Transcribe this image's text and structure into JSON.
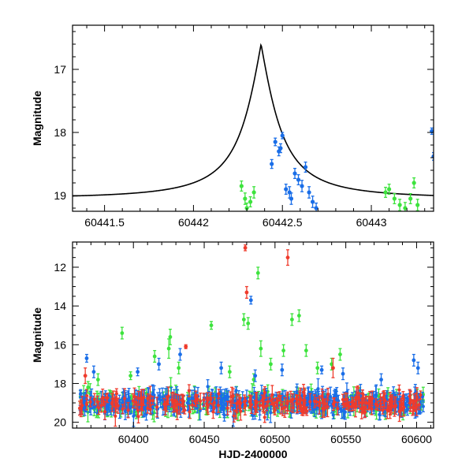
{
  "chart_data": [
    {
      "type": "line",
      "panel": "top",
      "xlabel": "",
      "ylabel": "Magnitude",
      "xlim": [
        60441.32,
        60443.35
      ],
      "ylim": [
        19.25,
        16.3
      ],
      "y_inverted": true,
      "xticks": [
        60441.5,
        60442,
        60442.5,
        60443
      ],
      "xtick_labels": [
        "60441.5",
        "60442",
        "60442.5",
        "60443"
      ],
      "yticks": [
        17,
        18,
        19
      ],
      "ytick_labels": [
        "17",
        "18",
        "19"
      ],
      "model_curve": {
        "peak_time": 60442.38,
        "peak_mag": 16.6,
        "baseline_mag": 19.05,
        "width_days": 0.27,
        "color": "#000000"
      },
      "series": [
        {
          "color": "#3de33d",
          "points": [
            {
              "x": 60442.27,
              "y": 18.85,
              "err": 0.08
            },
            {
              "x": 60442.29,
              "y": 19.05,
              "err": 0.09
            },
            {
              "x": 60442.3,
              "y": 19.2,
              "err": 0.08
            },
            {
              "x": 60442.32,
              "y": 19.1,
              "err": 0.08
            },
            {
              "x": 60442.34,
              "y": 18.95,
              "err": 0.09
            },
            {
              "x": 60443.08,
              "y": 18.95,
              "err": 0.08
            },
            {
              "x": 60443.1,
              "y": 18.9,
              "err": 0.08
            },
            {
              "x": 60443.13,
              "y": 19.05,
              "err": 0.08
            },
            {
              "x": 60443.16,
              "y": 19.15,
              "err": 0.09
            },
            {
              "x": 60443.19,
              "y": 19.2,
              "err": 0.09
            },
            {
              "x": 60443.22,
              "y": 19.05,
              "err": 0.08
            },
            {
              "x": 60443.24,
              "y": 18.8,
              "err": 0.08
            },
            {
              "x": 60443.26,
              "y": 19.15,
              "err": 0.09
            }
          ]
        },
        {
          "color": "#1a6ee8",
          "points": [
            {
              "x": 60442.44,
              "y": 18.5,
              "err": 0.07
            },
            {
              "x": 60442.46,
              "y": 18.15,
              "err": 0.06
            },
            {
              "x": 60442.48,
              "y": 18.3,
              "err": 0.07
            },
            {
              "x": 60442.49,
              "y": 18.25,
              "err": 0.07
            },
            {
              "x": 60442.5,
              "y": 18.05,
              "err": 0.05
            },
            {
              "x": 60442.52,
              "y": 18.9,
              "err": 0.08
            },
            {
              "x": 60442.54,
              "y": 18.95,
              "err": 0.09
            },
            {
              "x": 60442.55,
              "y": 19.05,
              "err": 0.09
            },
            {
              "x": 60442.57,
              "y": 18.65,
              "err": 0.08
            },
            {
              "x": 60442.59,
              "y": 18.75,
              "err": 0.08
            },
            {
              "x": 60442.61,
              "y": 18.85,
              "err": 0.09
            },
            {
              "x": 60442.63,
              "y": 18.55,
              "err": 0.08
            },
            {
              "x": 60442.65,
              "y": 18.95,
              "err": 0.09
            },
            {
              "x": 60442.67,
              "y": 19.1,
              "err": 0.09
            },
            {
              "x": 60442.69,
              "y": 19.2,
              "err": 0.08
            },
            {
              "x": 60443.34,
              "y": 17.98,
              "err": 0.05
            },
            {
              "x": 60443.35,
              "y": 18.38,
              "err": 0.06
            }
          ]
        }
      ]
    },
    {
      "type": "scatter",
      "panel": "bottom",
      "xlabel": "HJD-2400000",
      "ylabel": "Magnitude",
      "xlim": [
        60357,
        60612
      ],
      "ylim": [
        20.3,
        10.7
      ],
      "y_inverted": true,
      "xticks": [
        60400,
        60450,
        60500,
        60550,
        60600
      ],
      "xtick_labels": [
        "60400",
        "60450",
        "60500",
        "60550",
        "60600"
      ],
      "yticks": [
        12,
        14,
        16,
        18,
        20
      ],
      "ytick_labels": [
        "12",
        "14",
        "16",
        "18",
        "20"
      ],
      "baseline_mag": 19.0,
      "baseline_range": [
        60362,
        60605
      ],
      "series": [
        {
          "color": "#3de33d",
          "baseline_count": 260,
          "points": [
            {
              "x": 60368,
              "y": 18.2,
              "err": 0.3
            },
            {
              "x": 60375,
              "y": 17.8,
              "err": 0.3
            },
            {
              "x": 60392,
              "y": 15.4,
              "err": 0.3
            },
            {
              "x": 60398,
              "y": 17.6,
              "err": 0.2
            },
            {
              "x": 60415,
              "y": 16.6,
              "err": 0.3
            },
            {
              "x": 60425,
              "y": 16.2,
              "err": 0.5
            },
            {
              "x": 60426,
              "y": 15.6,
              "err": 0.4
            },
            {
              "x": 60432,
              "y": 17.2,
              "err": 0.3
            },
            {
              "x": 60455,
              "y": 15.0,
              "err": 0.2
            },
            {
              "x": 60468,
              "y": 17.4,
              "err": 0.3
            },
            {
              "x": 60478,
              "y": 14.7,
              "err": 0.3
            },
            {
              "x": 60481,
              "y": 14.9,
              "err": 0.3
            },
            {
              "x": 60485,
              "y": 17.8,
              "err": 0.3
            },
            {
              "x": 60488,
              "y": 12.3,
              "err": 0.3
            },
            {
              "x": 60490,
              "y": 16.2,
              "err": 0.4
            },
            {
              "x": 60497,
              "y": 17.0,
              "err": 0.3
            },
            {
              "x": 60506,
              "y": 16.3,
              "err": 0.3
            },
            {
              "x": 60512,
              "y": 14.7,
              "err": 0.3
            },
            {
              "x": 60517,
              "y": 14.5,
              "err": 0.3
            },
            {
              "x": 60522,
              "y": 16.3,
              "err": 0.3
            },
            {
              "x": 60530,
              "y": 17.2,
              "err": 0.3
            },
            {
              "x": 60540,
              "y": 17.0,
              "err": 0.3
            },
            {
              "x": 60546,
              "y": 16.5,
              "err": 0.3
            }
          ]
        },
        {
          "color": "#1a6ee8",
          "baseline_count": 420,
          "points": [
            {
              "x": 60367,
              "y": 16.7,
              "err": 0.2
            },
            {
              "x": 60372,
              "y": 17.4,
              "err": 0.3
            },
            {
              "x": 60403,
              "y": 17.4,
              "err": 0.2
            },
            {
              "x": 60418,
              "y": 17.0,
              "err": 0.3
            },
            {
              "x": 60433,
              "y": 16.5,
              "err": 0.3
            },
            {
              "x": 60462,
              "y": 17.2,
              "err": 0.3
            },
            {
              "x": 60483,
              "y": 13.7,
              "err": 0.2
            },
            {
              "x": 60486,
              "y": 17.6,
              "err": 0.3
            },
            {
              "x": 60505,
              "y": 17.3,
              "err": 0.3
            },
            {
              "x": 60533,
              "y": 17.3,
              "err": 0.2
            },
            {
              "x": 60548,
              "y": 17.5,
              "err": 0.3
            },
            {
              "x": 60575,
              "y": 17.8,
              "err": 0.3
            },
            {
              "x": 60598,
              "y": 16.8,
              "err": 0.3
            },
            {
              "x": 60601,
              "y": 17.2,
              "err": 0.3
            }
          ]
        },
        {
          "color": "#ef3b2c",
          "baseline_count": 230,
          "points": [
            {
              "x": 60366,
              "y": 17.6,
              "err": 0.4
            },
            {
              "x": 60437,
              "y": 16.1,
              "err": 0.1
            },
            {
              "x": 60479,
              "y": 11.0,
              "err": 0.15
            },
            {
              "x": 60480,
              "y": 13.3,
              "err": 0.3
            },
            {
              "x": 60509,
              "y": 11.5,
              "err": 0.4
            },
            {
              "x": 60541,
              "y": 17.2,
              "err": 0.5
            }
          ]
        }
      ]
    }
  ]
}
